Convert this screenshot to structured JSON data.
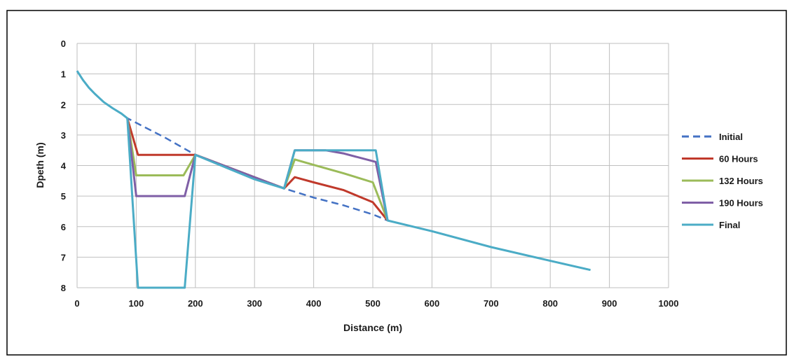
{
  "chart_data": {
    "type": "line",
    "title": "",
    "xlabel": "Distance (m)",
    "ylabel": "Dpeth (m)",
    "xlim": [
      0,
      1000
    ],
    "ylim": [
      0,
      8
    ],
    "y_inverted": true,
    "x_ticks": [
      "0",
      "100",
      "200",
      "300",
      "400",
      "500",
      "600",
      "700",
      "800",
      "900",
      "1000"
    ],
    "y_ticks": [
      "0",
      "1",
      "2",
      "3",
      "4",
      "5",
      "6",
      "7",
      "8"
    ],
    "grid": true,
    "legend_position": "right",
    "series": [
      {
        "name": "Initial",
        "color": "#4472C4",
        "dash": true,
        "points": [
          [
            0,
            0.9
          ],
          [
            10,
            1.2
          ],
          [
            20,
            1.45
          ],
          [
            30,
            1.65
          ],
          [
            45,
            1.92
          ],
          [
            60,
            2.12
          ],
          [
            75,
            2.3
          ],
          [
            85,
            2.45
          ],
          [
            150,
            3.1
          ],
          [
            200,
            3.65
          ],
          [
            250,
            4.05
          ],
          [
            300,
            4.45
          ],
          [
            350,
            4.75
          ],
          [
            400,
            5.05
          ],
          [
            450,
            5.3
          ],
          [
            500,
            5.6
          ],
          [
            525,
            5.8
          ],
          [
            600,
            6.15
          ],
          [
            700,
            6.67
          ],
          [
            800,
            7.12
          ],
          [
            868,
            7.42
          ]
        ]
      },
      {
        "name": "60 Hours",
        "color": "#C0392B",
        "dash": false,
        "points": [
          [
            85,
            2.45
          ],
          [
            103,
            3.65
          ],
          [
            200,
            3.65
          ],
          [
            350,
            4.75
          ],
          [
            368,
            4.38
          ],
          [
            400,
            4.55
          ],
          [
            450,
            4.8
          ],
          [
            500,
            5.2
          ],
          [
            525,
            5.8
          ]
        ]
      },
      {
        "name": "132 Hours",
        "color": "#9BBB59",
        "dash": false,
        "points": [
          [
            85,
            2.45
          ],
          [
            100,
            4.32
          ],
          [
            180,
            4.32
          ],
          [
            200,
            3.65
          ],
          [
            350,
            4.75
          ],
          [
            368,
            3.8
          ],
          [
            400,
            3.98
          ],
          [
            450,
            4.25
          ],
          [
            500,
            4.55
          ],
          [
            525,
            5.8
          ]
        ]
      },
      {
        "name": "190 Hours",
        "color": "#7F5FA6",
        "dash": false,
        "points": [
          [
            85,
            2.45
          ],
          [
            100,
            5.0
          ],
          [
            182,
            5.0
          ],
          [
            200,
            3.65
          ],
          [
            350,
            4.75
          ],
          [
            368,
            3.5
          ],
          [
            420,
            3.5
          ],
          [
            450,
            3.6
          ],
          [
            505,
            3.88
          ],
          [
            525,
            5.8
          ]
        ]
      },
      {
        "name": "Final",
        "color": "#4BACC6",
        "dash": false,
        "points": [
          [
            0,
            0.9
          ],
          [
            10,
            1.2
          ],
          [
            20,
            1.45
          ],
          [
            30,
            1.65
          ],
          [
            45,
            1.92
          ],
          [
            60,
            2.12
          ],
          [
            75,
            2.3
          ],
          [
            85,
            2.45
          ],
          [
            103,
            8.0
          ],
          [
            182,
            8.0
          ],
          [
            200,
            3.65
          ],
          [
            250,
            4.05
          ],
          [
            300,
            4.45
          ],
          [
            350,
            4.75
          ],
          [
            368,
            3.5
          ],
          [
            505,
            3.5
          ],
          [
            525,
            5.8
          ],
          [
            600,
            6.15
          ],
          [
            700,
            6.67
          ],
          [
            800,
            7.12
          ],
          [
            868,
            7.42
          ]
        ]
      }
    ]
  }
}
